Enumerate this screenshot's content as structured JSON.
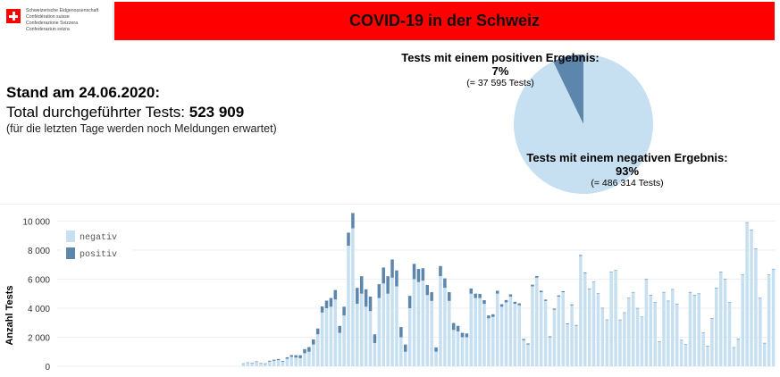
{
  "logo": {
    "lines": [
      "Schweizerische Eidgenossenschaft",
      "Confédération suisse",
      "Confederazione Svizzera",
      "Confederaziun svizra"
    ],
    "colors": {
      "flag": "#ff0000"
    }
  },
  "header": {
    "title": "COVID-19 in der Schweiz",
    "bg_color": "#ff0000"
  },
  "summary": {
    "stand": "Stand am 24.06.2020:",
    "total_label": "Total durchgeführter Tests:",
    "total_value": "523 909",
    "note": "(für die letzten Tage werden noch Meldungen erwartet)"
  },
  "pie": {
    "type": "pie",
    "slices": [
      {
        "label": "Tests mit einem positiven Ergebnis:",
        "percent_text": "7%",
        "detail": "(= 37 595 Tests)",
        "value": 37595,
        "color": "#5d86ad"
      },
      {
        "label": "Tests mit einem negativen Ergebnis:",
        "percent_text": "93%",
        "detail": "(= 486 314 Tests)",
        "value": 486314,
        "color": "#c6e0f2"
      }
    ]
  },
  "chart_data": {
    "type": "bar",
    "stacked": true,
    "ylabel": "Anzahl Tests",
    "ylim": [
      0,
      10700
    ],
    "yticks": [
      0,
      2000,
      4000,
      6000,
      8000,
      10000
    ],
    "ytick_labels": [
      "0",
      "2 000",
      "4 000",
      "6 000",
      "8 000",
      "10 000"
    ],
    "legend_position": "top-left",
    "grid": true,
    "series": [
      {
        "name": "negativ",
        "color": "#c6e0f2",
        "values": [
          0,
          0,
          0,
          0,
          0,
          0,
          0,
          0,
          0,
          0,
          0,
          0,
          0,
          0,
          0,
          0,
          0,
          0,
          0,
          0,
          0,
          0,
          0,
          0,
          0,
          0,
          0,
          0,
          0,
          0,
          0,
          0,
          0,
          0,
          0,
          0,
          0,
          0,
          0,
          0,
          0,
          0,
          180,
          240,
          220,
          300,
          200,
          160,
          320,
          380,
          420,
          300,
          520,
          650,
          600,
          560,
          900,
          1000,
          1500,
          2200,
          3700,
          4000,
          4100,
          4600,
          2300,
          3500,
          8300,
          9500,
          4300,
          5000,
          4100,
          3800,
          1600,
          4700,
          5700,
          5000,
          6100,
          5500,
          2000,
          1000,
          4000,
          6000,
          5800,
          5900,
          4900,
          4500,
          1000,
          6200,
          5400,
          4500,
          2500,
          2400,
          2000,
          2000,
          5000,
          4700,
          4700,
          4300,
          3300,
          3400,
          5000,
          4100,
          4400,
          4800,
          4300,
          4200,
          1800,
          1500,
          5500,
          6100,
          5100,
          4500,
          2000,
          3900,
          4800,
          5100,
          2900,
          4200,
          2800,
          7600,
          6400,
          5300,
          5800,
          5000,
          4000,
          3200,
          6500,
          6600,
          3200,
          3700,
          4700,
          5100,
          4000,
          3400,
          6000,
          4900,
          4400,
          1700,
          5100,
          4500,
          5300,
          4300,
          1800,
          1500,
          5100,
          4900,
          5000,
          2300,
          1400,
          3300,
          5400,
          6500,
          6000,
          4400,
          1300,
          1900,
          6300,
          9900,
          9400,
          8100,
          4700,
          1600,
          6300,
          6700
        ]
      },
      {
        "name": "positiv",
        "color": "#5d86ad",
        "values": [
          0,
          0,
          0,
          0,
          0,
          0,
          0,
          0,
          0,
          0,
          0,
          0,
          0,
          0,
          0,
          0,
          0,
          0,
          0,
          0,
          0,
          0,
          0,
          0,
          0,
          0,
          0,
          0,
          0,
          0,
          0,
          0,
          0,
          0,
          0,
          0,
          0,
          0,
          0,
          0,
          0,
          0,
          20,
          30,
          30,
          40,
          30,
          40,
          60,
          70,
          80,
          60,
          100,
          120,
          160,
          200,
          280,
          320,
          350,
          400,
          420,
          520,
          600,
          650,
          480,
          600,
          900,
          1050,
          1100,
          1200,
          1200,
          1000,
          600,
          950,
          1100,
          1200,
          1250,
          1100,
          700,
          500,
          850,
          1050,
          900,
          850,
          700,
          600,
          300,
          700,
          650,
          600,
          480,
          380,
          300,
          260,
          350,
          300,
          280,
          250,
          200,
          180,
          200,
          170,
          160,
          150,
          140,
          130,
          80,
          70,
          120,
          110,
          100,
          90,
          60,
          70,
          80,
          70,
          50,
          60,
          40,
          60,
          50,
          40,
          30,
          30,
          20,
          15,
          20,
          20,
          10,
          10,
          10,
          10,
          10,
          10,
          10,
          10,
          10,
          10,
          10,
          10,
          10,
          10,
          10,
          10,
          10,
          10,
          10,
          10,
          10,
          10,
          10,
          10,
          10,
          10,
          10,
          10,
          10,
          10,
          10,
          10,
          10,
          10,
          10,
          10,
          10,
          10,
          10,
          10
        ]
      }
    ]
  }
}
